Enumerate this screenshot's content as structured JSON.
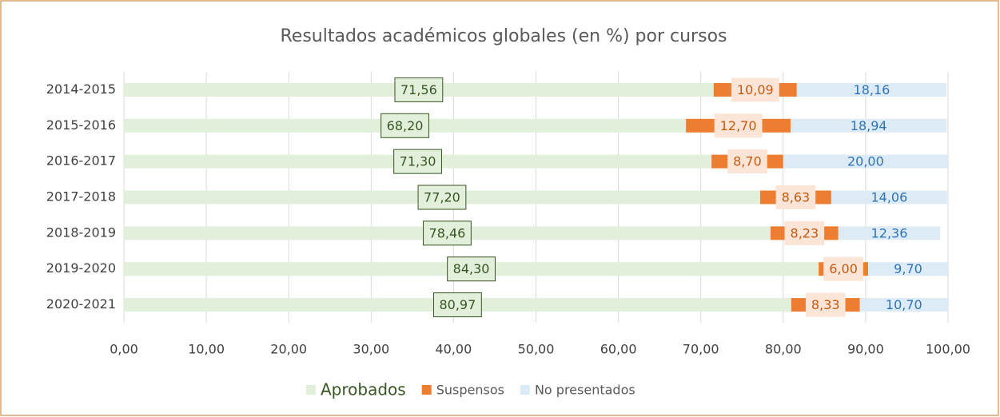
{
  "chart_data": {
    "type": "bar",
    "orientation": "horizontal",
    "stacked": true,
    "title": "Resultados académicos globales (en %) por cursos",
    "categories": [
      "2014-2015",
      "2015-2016",
      "2016-2017",
      "2017-2018",
      "2018-2019",
      "2019-2020",
      "2020-2021"
    ],
    "series": [
      {
        "name": "Aprobados",
        "color": "#e2efda",
        "label_color": "#375623",
        "values": [
          71.56,
          68.2,
          71.3,
          77.2,
          78.46,
          84.3,
          80.97
        ],
        "value_labels": [
          "71,56",
          "68,20",
          "71,30",
          "77,20",
          "78,46",
          "84,30",
          "80,97"
        ]
      },
      {
        "name": "Suspensos",
        "color": "#ed7d31",
        "label_color": "#c55a11",
        "values": [
          10.09,
          12.7,
          8.7,
          8.63,
          8.23,
          6.0,
          8.33
        ],
        "value_labels": [
          "10,09",
          "12,70",
          "8,70",
          "8,63",
          "8,23",
          "6,00",
          "8,33"
        ]
      },
      {
        "name": "No presentados",
        "color": "#ddebf7",
        "label_color": "#2e75b6",
        "values": [
          18.16,
          18.94,
          20.0,
          14.06,
          12.36,
          9.7,
          10.7
        ],
        "value_labels": [
          "18,16",
          "18,94",
          "20,00",
          "14,06",
          "12,36",
          "9,70",
          "10,70"
        ]
      }
    ],
    "xlim": [
      0,
      100
    ],
    "xticks": [
      {
        "value": 0,
        "label": "0,00"
      },
      {
        "value": 10,
        "label": "10,00"
      },
      {
        "value": 20,
        "label": "20,00"
      },
      {
        "value": 30,
        "label": "30,00"
      },
      {
        "value": 40,
        "label": "40,00"
      },
      {
        "value": 50,
        "label": "50,00"
      },
      {
        "value": 60,
        "label": "60,00"
      },
      {
        "value": 70,
        "label": "70,00"
      },
      {
        "value": 80,
        "label": "80,00"
      },
      {
        "value": 90,
        "label": "90,00"
      },
      {
        "value": 100,
        "label": "100,00"
      }
    ],
    "grid": true,
    "legend": "bottom"
  }
}
